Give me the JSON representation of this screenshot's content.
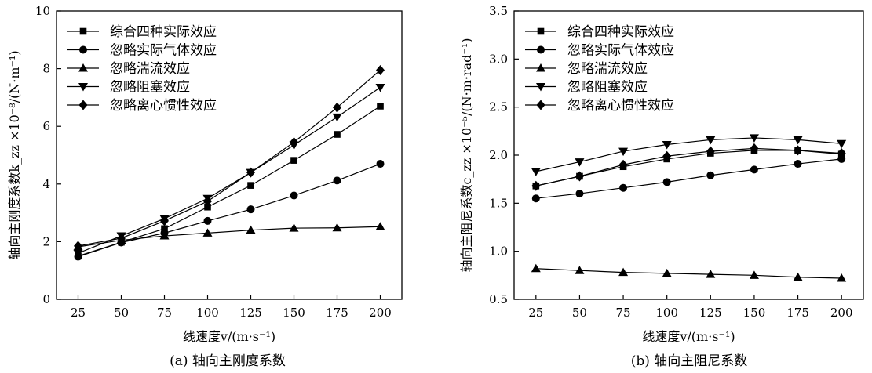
{
  "chart_data": [
    {
      "type": "line",
      "caption": "(a) 轴向主刚度系数",
      "xlabel": "线速度v/(m·s⁻¹)",
      "ylabel": "轴向主刚度系数k_zz ×10⁻⁸/(N·m⁻¹)",
      "x": [
        25,
        50,
        75,
        100,
        125,
        150,
        175,
        200
      ],
      "xticks": [
        "25",
        "50",
        "75",
        "100",
        "125",
        "150",
        "175",
        "200"
      ],
      "xlim": [
        12.5,
        212.5
      ],
      "yticks": [
        "0",
        "2",
        "4",
        "6",
        "8",
        "10"
      ],
      "ylim": [
        0,
        10
      ],
      "legend_position": "top-left",
      "series": [
        {
          "name": "综合四种实际效应",
          "marker": "square",
          "values": [
            1.5,
            1.98,
            2.45,
            3.2,
            3.95,
            4.82,
            5.72,
            6.7
          ]
        },
        {
          "name": "忽略实际气体效应",
          "marker": "circle",
          "values": [
            1.48,
            1.97,
            2.3,
            2.72,
            3.12,
            3.6,
            4.12,
            4.7
          ]
        },
        {
          "name": "忽略湍流效应",
          "marker": "triangle-up",
          "values": [
            1.82,
            2.05,
            2.2,
            2.3,
            2.4,
            2.47,
            2.48,
            2.52
          ]
        },
        {
          "name": "忽略阻塞效应",
          "marker": "triangle-down",
          "values": [
            1.6,
            2.2,
            2.8,
            3.5,
            4.4,
            5.35,
            6.32,
            7.35
          ]
        },
        {
          "name": "忽略离心惯性效应",
          "marker": "diamond",
          "values": [
            1.85,
            2.12,
            2.72,
            3.4,
            4.4,
            5.45,
            6.65,
            7.95
          ]
        }
      ]
    },
    {
      "type": "line",
      "caption": "(b) 轴向主阻尼系数",
      "xlabel": "线速度v/(m·s⁻¹)",
      "ylabel": "轴向主阻尼系数c_zz ×10⁻⁵/(N·m·rad⁻¹)",
      "x": [
        25,
        50,
        75,
        100,
        125,
        150,
        175,
        200
      ],
      "xticks": [
        "25",
        "50",
        "75",
        "100",
        "125",
        "150",
        "175",
        "200"
      ],
      "xlim": [
        12.5,
        212.5
      ],
      "yticks": [
        "0.5",
        "1.0",
        "1.5",
        "2.0",
        "2.5",
        "3.0",
        "3.5"
      ],
      "ylim": [
        0.5,
        3.5
      ],
      "legend_position": "top-left",
      "series": [
        {
          "name": "综合四种实际效应",
          "marker": "square",
          "values": [
            1.68,
            1.78,
            1.88,
            1.96,
            2.02,
            2.05,
            2.05,
            2.01
          ]
        },
        {
          "name": "忽略实际气体效应",
          "marker": "circle",
          "values": [
            1.55,
            1.6,
            1.66,
            1.72,
            1.79,
            1.85,
            1.91,
            1.96
          ]
        },
        {
          "name": "忽略湍流效应",
          "marker": "triangle-up",
          "values": [
            0.82,
            0.8,
            0.78,
            0.77,
            0.76,
            0.75,
            0.73,
            0.72
          ]
        },
        {
          "name": "忽略阻塞效应",
          "marker": "triangle-down",
          "values": [
            1.83,
            1.93,
            2.04,
            2.11,
            2.16,
            2.18,
            2.16,
            2.12
          ]
        },
        {
          "name": "忽略离心惯性效应",
          "marker": "diamond",
          "values": [
            1.68,
            1.78,
            1.9,
            1.99,
            2.04,
            2.07,
            2.05,
            2.02
          ]
        }
      ]
    }
  ]
}
